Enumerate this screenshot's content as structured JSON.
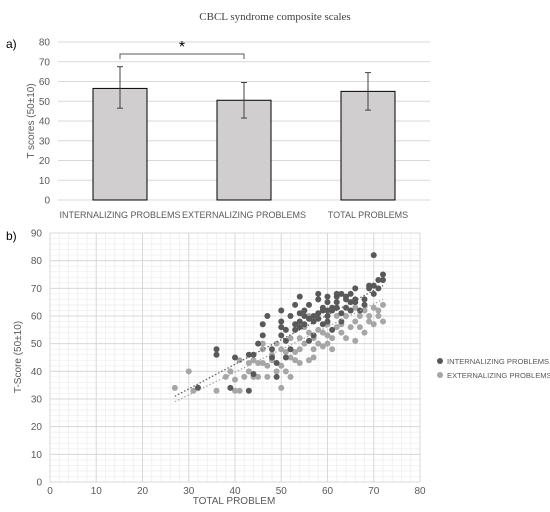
{
  "figure": {
    "title": "CBCL syndrome composite scales"
  },
  "chart_data": [
    {
      "panel_label": "a)",
      "type": "bar",
      "title": "CBCL syndrome composite scales",
      "categories": [
        "INTERNALIZING PROBLEMS",
        "EXTERNALIZING PROBLEMS",
        "TOTAL PROBLEMS"
      ],
      "values": [
        56.5,
        50.5,
        55.0
      ],
      "error_low": [
        46.5,
        41.5,
        45.5
      ],
      "error_high": [
        67.5,
        59.5,
        64.5
      ],
      "ylabel": "T scores (50±10)",
      "ylim": [
        0,
        80
      ],
      "yticks": [
        0,
        10,
        20,
        30,
        40,
        50,
        60,
        70,
        80
      ],
      "grid": true,
      "bar_color": "#d0cece",
      "significance": {
        "between": [
          "INTERNALIZING PROBLEMS",
          "EXTERNALIZING PROBLEMS"
        ],
        "label": "*"
      }
    },
    {
      "panel_label": "b)",
      "type": "scatter",
      "xlabel": "TOTAL PROBLEM",
      "ylabel": "T-Score (50±10)",
      "xlim": [
        0,
        80
      ],
      "ylim": [
        0,
        90
      ],
      "xticks": [
        0,
        10,
        20,
        30,
        40,
        50,
        60,
        70,
        80
      ],
      "yticks": [
        0,
        10,
        20,
        30,
        40,
        50,
        60,
        70,
        80,
        90
      ],
      "grid": true,
      "legend_position": "right",
      "series": [
        {
          "name": "INTERNALIZING PROBLEMS",
          "color": "#595959",
          "trendline": {
            "x": [
              27,
              72
            ],
            "y": [
              31,
              71
            ]
          },
          "points": [
            [
              32,
              34
            ],
            [
              36,
              48
            ],
            [
              36,
              46
            ],
            [
              39,
              34
            ],
            [
              40,
              45
            ],
            [
              43,
              46
            ],
            [
              43,
              33
            ],
            [
              44,
              39
            ],
            [
              44,
              46
            ],
            [
              45,
              50
            ],
            [
              46,
              53
            ],
            [
              46,
              57
            ],
            [
              47,
              60
            ],
            [
              48,
              45
            ],
            [
              48,
              48
            ],
            [
              49,
              38
            ],
            [
              49,
              43
            ],
            [
              50,
              62
            ],
            [
              50,
              56
            ],
            [
              50,
              53
            ],
            [
              50,
              58
            ],
            [
              51,
              51
            ],
            [
              51,
              55
            ],
            [
              51,
              45
            ],
            [
              52,
              60
            ],
            [
              53,
              64
            ],
            [
              53,
              57
            ],
            [
              53,
              55
            ],
            [
              54,
              67
            ],
            [
              54,
              58
            ],
            [
              54,
              61
            ],
            [
              55,
              62
            ],
            [
              55,
              60
            ],
            [
              55,
              57
            ],
            [
              56,
              59
            ],
            [
              56,
              64
            ],
            [
              57,
              60
            ],
            [
              57,
              58
            ],
            [
              57,
              53
            ],
            [
              58,
              59
            ],
            [
              58,
              66
            ],
            [
              58,
              68
            ],
            [
              59,
              62
            ],
            [
              59,
              63
            ],
            [
              59,
              57
            ],
            [
              60,
              67
            ],
            [
              60,
              65
            ],
            [
              60,
              60
            ],
            [
              60,
              58
            ],
            [
              61,
              63
            ],
            [
              61,
              62
            ],
            [
              61,
              55
            ],
            [
              62,
              65
            ],
            [
              62,
              67
            ],
            [
              62,
              68
            ],
            [
              62,
              63
            ],
            [
              63,
              68
            ],
            [
              63,
              61
            ],
            [
              63,
              58
            ],
            [
              64,
              67
            ],
            [
              64,
              66
            ],
            [
              64,
              63
            ],
            [
              65,
              65
            ],
            [
              65,
              68
            ],
            [
              65,
              62
            ],
            [
              66,
              65
            ],
            [
              66,
              70
            ],
            [
              67,
              62
            ],
            [
              68,
              66
            ],
            [
              68,
              64
            ],
            [
              69,
              70
            ],
            [
              69,
              71
            ],
            [
              70,
              82
            ],
            [
              70,
              71
            ],
            [
              70,
              68
            ],
            [
              71,
              70
            ],
            [
              71,
              73
            ],
            [
              72,
              75
            ],
            [
              72,
              73
            ],
            [
              66,
              66
            ],
            [
              58,
              61
            ],
            [
              56,
              51
            ],
            [
              52,
              48
            ],
            [
              54,
              56
            ],
            [
              60,
              62
            ]
          ]
        },
        {
          "name": "EXTERNALIZING PROBLEMS",
          "color": "#a6a6a6",
          "trendline": {
            "x": [
              27,
              72
            ],
            "y": [
              29,
              66
            ]
          },
          "points": [
            [
              27,
              34
            ],
            [
              30,
              40
            ],
            [
              31,
              33
            ],
            [
              32,
              34
            ],
            [
              36,
              33
            ],
            [
              38,
              38
            ],
            [
              39,
              40
            ],
            [
              40,
              37
            ],
            [
              40,
              33
            ],
            [
              41,
              33
            ],
            [
              41,
              44
            ],
            [
              42,
              38
            ],
            [
              43,
              43
            ],
            [
              43,
              40
            ],
            [
              44,
              44
            ],
            [
              44,
              38
            ],
            [
              45,
              43
            ],
            [
              45,
              38
            ],
            [
              46,
              43
            ],
            [
              46,
              48
            ],
            [
              47,
              42
            ],
            [
              47,
              38
            ],
            [
              48,
              44
            ],
            [
              48,
              46
            ],
            [
              49,
              50
            ],
            [
              49,
              40
            ],
            [
              50,
              48
            ],
            [
              50,
              34
            ],
            [
              50,
              42
            ],
            [
              51,
              47
            ],
            [
              51,
              40
            ],
            [
              52,
              52
            ],
            [
              52,
              45
            ],
            [
              53,
              47
            ],
            [
              53,
              44
            ],
            [
              54,
              52
            ],
            [
              54,
              48
            ],
            [
              55,
              56
            ],
            [
              55,
              50
            ],
            [
              56,
              54
            ],
            [
              56,
              44
            ],
            [
              57,
              52
            ],
            [
              57,
              48
            ],
            [
              58,
              55
            ],
            [
              58,
              50
            ],
            [
              59,
              54
            ],
            [
              59,
              49
            ],
            [
              60,
              57
            ],
            [
              60,
              53
            ],
            [
              61,
              52
            ],
            [
              61,
              48
            ],
            [
              62,
              56
            ],
            [
              62,
              60
            ],
            [
              63,
              54
            ],
            [
              63,
              57
            ],
            [
              64,
              60
            ],
            [
              64,
              52
            ],
            [
              65,
              56
            ],
            [
              65,
              62
            ],
            [
              66,
              58
            ],
            [
              66,
              51
            ],
            [
              67,
              56
            ],
            [
              67,
              60
            ],
            [
              68,
              62
            ],
            [
              68,
              54
            ],
            [
              69,
              60
            ],
            [
              69,
              58
            ],
            [
              70,
              63
            ],
            [
              70,
              57
            ],
            [
              71,
              62
            ],
            [
              71,
              60
            ],
            [
              72,
              64
            ],
            [
              72,
              58
            ],
            [
              56,
              60
            ],
            [
              54,
              43
            ],
            [
              46,
              50
            ],
            [
              52,
              38
            ],
            [
              60,
              50
            ],
            [
              57,
              45
            ],
            [
              66,
              63
            ]
          ]
        }
      ]
    }
  ]
}
